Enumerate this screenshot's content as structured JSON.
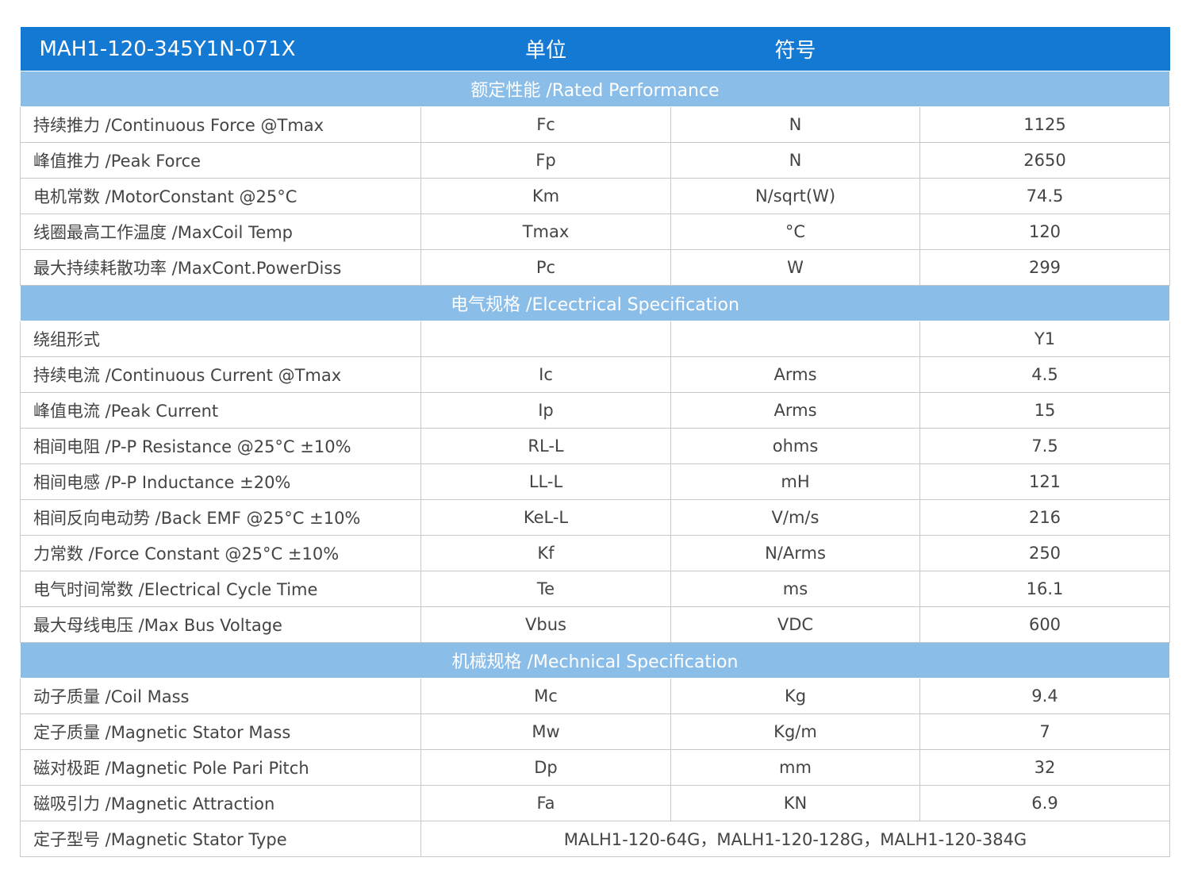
{
  "header": {
    "model": "MAH1-120-345Y1N-071X",
    "unit": "单位",
    "symbol": "符号"
  },
  "sections": [
    {
      "title": "额定性能 /Rated Performance",
      "rows": [
        {
          "label": "持续推力 /Continuous Force @Tmax",
          "symbol": "Fc",
          "unit": "N",
          "value": "1125"
        },
        {
          "label": "峰值推力 /Peak Force",
          "symbol": "Fp",
          "unit": "N",
          "value": "2650"
        },
        {
          "label": "电机常数 /MotorConstant @25°C",
          "symbol": "Km",
          "unit": "N/sqrt(W)",
          "value": "74.5"
        },
        {
          "label": "线圈最高工作温度 /MaxCoil Temp",
          "symbol": "Tmax",
          "unit": "°C",
          "value": "120"
        },
        {
          "label": "最大持续耗散功率 /MaxCont.PowerDiss",
          "symbol": "Pc",
          "unit": "W",
          "value": "299"
        }
      ]
    },
    {
      "title": "电气规格 /Elcectrical Specification",
      "rows": [
        {
          "label": "绕组形式",
          "symbol": "",
          "unit": "",
          "value": "Y1"
        },
        {
          "label": "持续电流 /Continuous Current @Tmax",
          "symbol": "Ic",
          "unit": "Arms",
          "value": "4.5"
        },
        {
          "label": "峰值电流 /Peak Current",
          "symbol": "Ip",
          "unit": "Arms",
          "value": "15"
        },
        {
          "label": "相间电阻 /P-P Resistance @25°C ±10%",
          "symbol": "RL-L",
          "unit": "ohms",
          "value": "7.5"
        },
        {
          "label": "相间电感 /P-P Inductance ±20%",
          "symbol": "LL-L",
          "unit": "mH",
          "value": "121"
        },
        {
          "label": "相间反向电动势 /Back EMF @25°C ±10%",
          "symbol": "KeL-L",
          "unit": "V/m/s",
          "value": "216"
        },
        {
          "label": "力常数 /Force Constant @25°C ±10%",
          "symbol": "Kf",
          "unit": "N/Arms",
          "value": "250"
        },
        {
          "label": "电气时间常数 /Electrical Cycle Time",
          "symbol": "Te",
          "unit": "ms",
          "value": "16.1"
        },
        {
          "label": "最大母线电压 /Max Bus Voltage",
          "symbol": "Vbus",
          "unit": "VDC",
          "value": "600"
        }
      ]
    },
    {
      "title": "机械规格 /Mechnical Specification",
      "rows": [
        {
          "label": "动子质量 /Coil Mass",
          "symbol": "Mc",
          "unit": "Kg",
          "value": "9.4"
        },
        {
          "label": "定子质量 /Magnetic Stator Mass",
          "symbol": "Mw",
          "unit": "Kg/m",
          "value": "7"
        },
        {
          "label": "磁对极距 /Magnetic Pole Pari Pitch",
          "symbol": "Dp",
          "unit": "mm",
          "value": "32"
        },
        {
          "label": "磁吸引力 /Magnetic Attraction",
          "symbol": "Fa",
          "unit": "KN",
          "value": "6.9"
        }
      ]
    }
  ],
  "stator_type": {
    "label": "定子型号 /Magnetic Stator Type",
    "value": "MALH1-120-64G，MALH1-120-128G，MALH1-120-384G"
  }
}
